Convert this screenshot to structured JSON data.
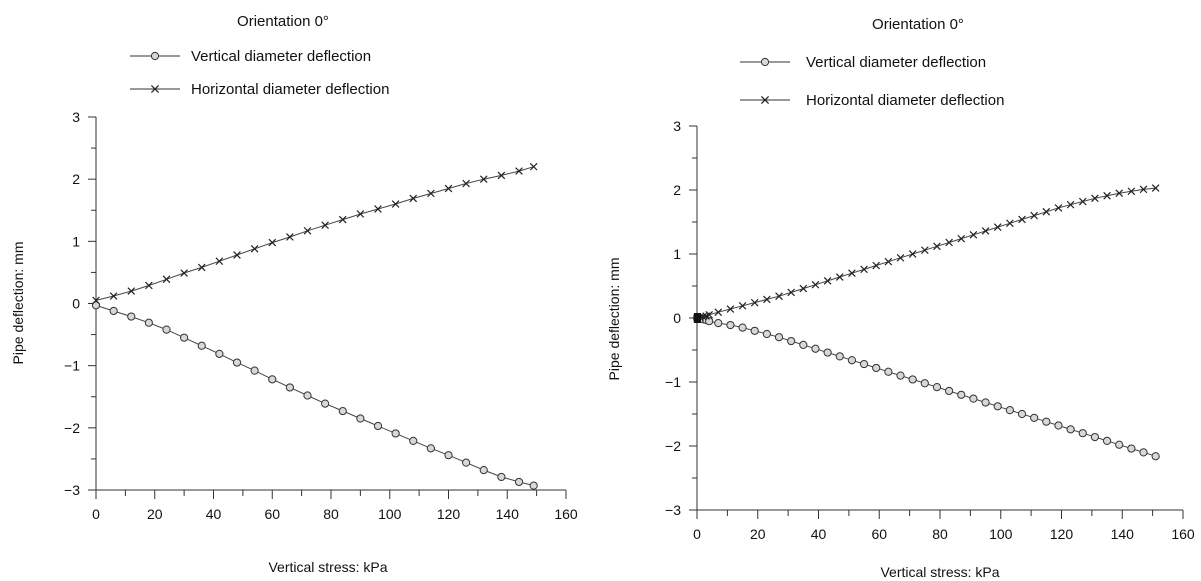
{
  "chart_data": [
    {
      "type": "line",
      "title": "Orientation 0°",
      "xlabel": "Vertical stress: kPa",
      "ylabel": "Pipe deflection: mm",
      "xlim": [
        0,
        160
      ],
      "ylim": [
        -3,
        3
      ],
      "xticks": [
        0,
        20,
        40,
        60,
        80,
        100,
        120,
        140,
        160
      ],
      "yticks": [
        -3,
        -2,
        -1,
        0,
        1,
        2,
        3
      ],
      "xtick_labels": [
        "0",
        "20",
        "40",
        "60",
        "80",
        "100",
        "120",
        "140",
        "160"
      ],
      "ytick_labels": [
        "−3",
        "−2",
        "−1",
        "0",
        "1",
        "2",
        "3"
      ],
      "legend_position": "top",
      "series": [
        {
          "name": "Vertical diameter deflection",
          "marker": "circle",
          "x": [
            0,
            6,
            12,
            18,
            24,
            30,
            36,
            42,
            48,
            54,
            60,
            66,
            72,
            78,
            84,
            90,
            96,
            102,
            108,
            114,
            120,
            126,
            132,
            138,
            144,
            149
          ],
          "y": [
            -0.03,
            -0.12,
            -0.21,
            -0.31,
            -0.42,
            -0.55,
            -0.68,
            -0.81,
            -0.95,
            -1.08,
            -1.22,
            -1.35,
            -1.48,
            -1.61,
            -1.73,
            -1.85,
            -1.97,
            -2.09,
            -2.21,
            -2.33,
            -2.44,
            -2.56,
            -2.68,
            -2.79,
            -2.87,
            -2.93
          ]
        },
        {
          "name": "Horizontal diameter deflection",
          "marker": "x",
          "x": [
            0,
            6,
            12,
            18,
            24,
            30,
            36,
            42,
            48,
            54,
            60,
            66,
            72,
            78,
            84,
            90,
            96,
            102,
            108,
            114,
            120,
            126,
            132,
            138,
            144,
            149
          ],
          "y": [
            0.05,
            0.12,
            0.2,
            0.29,
            0.39,
            0.49,
            0.58,
            0.68,
            0.78,
            0.88,
            0.98,
            1.07,
            1.17,
            1.26,
            1.35,
            1.44,
            1.52,
            1.6,
            1.69,
            1.77,
            1.85,
            1.93,
            2.0,
            2.06,
            2.13,
            2.2
          ]
        }
      ]
    },
    {
      "type": "line",
      "title": "Orientation 0°",
      "xlabel": "Vertical stress: kPa",
      "ylabel": "Pipe deflection: mm",
      "xlim": [
        0,
        160
      ],
      "ylim": [
        -3,
        3
      ],
      "xticks": [
        0,
        20,
        40,
        60,
        80,
        100,
        120,
        140,
        160
      ],
      "yticks": [
        -3,
        -2,
        -1,
        0,
        1,
        2,
        3
      ],
      "xtick_labels": [
        "0",
        "20",
        "40",
        "60",
        "80",
        "100",
        "120",
        "140",
        "160"
      ],
      "ytick_labels": [
        "−3",
        "−2",
        "−1",
        "0",
        "1",
        "2",
        "3"
      ],
      "legend_position": "top",
      "series": [
        {
          "name": "Vertical diameter deflection",
          "marker": "circle",
          "x": [
            0,
            1,
            2,
            3,
            4,
            7,
            11,
            15,
            19,
            23,
            27,
            31,
            35,
            39,
            43,
            47,
            51,
            55,
            59,
            63,
            67,
            71,
            75,
            79,
            83,
            87,
            91,
            95,
            99,
            103,
            107,
            111,
            115,
            119,
            123,
            127,
            131,
            135,
            139,
            143,
            147,
            151
          ],
          "y": [
            0,
            -0.01,
            -0.02,
            -0.03,
            -0.05,
            -0.08,
            -0.11,
            -0.15,
            -0.2,
            -0.25,
            -0.3,
            -0.36,
            -0.42,
            -0.48,
            -0.54,
            -0.6,
            -0.66,
            -0.72,
            -0.78,
            -0.84,
            -0.9,
            -0.96,
            -1.02,
            -1.08,
            -1.14,
            -1.2,
            -1.26,
            -1.32,
            -1.38,
            -1.44,
            -1.5,
            -1.56,
            -1.62,
            -1.68,
            -1.74,
            -1.8,
            -1.86,
            -1.92,
            -1.98,
            -2.04,
            -2.1,
            -2.16
          ]
        },
        {
          "name": "Horizontal diameter deflection",
          "marker": "x",
          "x": [
            0,
            1,
            2,
            3,
            4,
            7,
            11,
            15,
            19,
            23,
            27,
            31,
            35,
            39,
            43,
            47,
            51,
            55,
            59,
            63,
            67,
            71,
            75,
            79,
            83,
            87,
            91,
            95,
            99,
            103,
            107,
            111,
            115,
            119,
            123,
            127,
            131,
            135,
            139,
            143,
            147,
            151
          ],
          "y": [
            0,
            0.01,
            0.02,
            0.03,
            0.05,
            0.09,
            0.14,
            0.19,
            0.24,
            0.29,
            0.34,
            0.4,
            0.46,
            0.52,
            0.58,
            0.64,
            0.7,
            0.76,
            0.82,
            0.88,
            0.94,
            1.0,
            1.06,
            1.12,
            1.18,
            1.24,
            1.3,
            1.36,
            1.42,
            1.48,
            1.54,
            1.6,
            1.66,
            1.72,
            1.77,
            1.82,
            1.87,
            1.91,
            1.95,
            1.98,
            2.01,
            2.03
          ]
        }
      ]
    }
  ]
}
